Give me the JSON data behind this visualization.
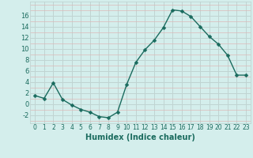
{
  "x": [
    0,
    1,
    2,
    3,
    4,
    5,
    6,
    7,
    8,
    9,
    10,
    11,
    12,
    13,
    14,
    15,
    16,
    17,
    18,
    19,
    20,
    21,
    22,
    23
  ],
  "y": [
    1.5,
    1.0,
    3.8,
    0.8,
    -0.2,
    -1.0,
    -1.5,
    -2.3,
    -2.5,
    -1.5,
    3.5,
    7.5,
    9.8,
    11.5,
    13.8,
    17.0,
    16.8,
    15.8,
    14.0,
    12.2,
    10.8,
    8.8,
    5.2,
    5.2
  ],
  "xlabel": "Humidex (Indice chaleur)",
  "line_color": "#1a6b5e",
  "marker_color": "#1a6b5e",
  "bg_color": "#d4eeec",
  "major_grid_color": "#c0d4d2",
  "minor_grid_color": "#ddb8b8",
  "tick_color": "#1a6b5e",
  "label_color": "#1a6b5e",
  "ylim": [
    -3.5,
    18.5
  ],
  "yticks": [
    -2,
    0,
    2,
    4,
    6,
    8,
    10,
    12,
    14,
    16
  ],
  "xticks": [
    0,
    1,
    2,
    3,
    4,
    5,
    6,
    7,
    8,
    9,
    10,
    11,
    12,
    13,
    14,
    15,
    16,
    17,
    18,
    19,
    20,
    21,
    22,
    23
  ],
  "marker_size": 2.5,
  "line_width": 1.0,
  "xlabel_fontsize": 7,
  "tick_fontsize": 5.5
}
